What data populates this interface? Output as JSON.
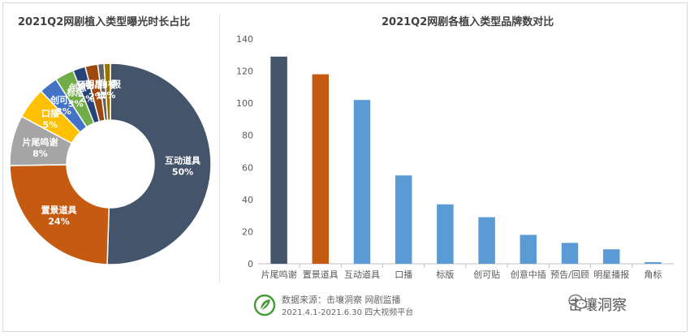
{
  "footer": {
    "source": "数据来源：击壤洞察 网剧监播",
    "period": "2021.4.1-2021.6.30 四大视频平台",
    "watermark": "击壤洞察",
    "logo_icon": "jirang-leaf-logo-icon",
    "wechat_icon": "wechat-icon"
  },
  "chart_data": [
    {
      "type": "pie",
      "title": "2021Q2网剧植入类型曝光时长占比",
      "donut": true,
      "slices": [
        {
          "label": "互动道具",
          "value": 50,
          "pct_label": "50%",
          "color": "#44546a"
        },
        {
          "label": "置景道具",
          "value": 24,
          "pct_label": "24%",
          "color": "#c55a11"
        },
        {
          "label": "片尾鸣谢",
          "value": 8,
          "pct_label": "8%",
          "color": "#a5a5a5"
        },
        {
          "label": "口播",
          "value": 5,
          "pct_label": "5%",
          "color": "#ffc000"
        },
        {
          "label": "创可贴",
          "value": 3,
          "pct_label": "3%",
          "color": "#4472c4"
        },
        {
          "label": "标版",
          "value": 3,
          "pct_label": "3%",
          "color": "#70ad47"
        },
        {
          "label": "创意中插",
          "value": 2,
          "pct_label": "2%",
          "color": "#264478"
        },
        {
          "label": "预告/回顾",
          "value": 2,
          "pct_label": "2%",
          "color": "#9e480e"
        },
        {
          "label": "明星播报",
          "value": 1,
          "pct_label": "1%",
          "color": "#636363"
        },
        {
          "label": "角标",
          "value": 1,
          "pct_label": "1%",
          "color": "#997300"
        }
      ]
    },
    {
      "type": "bar",
      "title": "2021Q2网剧各植入类型品牌数对比",
      "categories": [
        "片尾鸣谢",
        "置景道具",
        "互动道具",
        "口播",
        "标版",
        "创可贴",
        "创意中插",
        "预告/回顾",
        "明星播报",
        "角标"
      ],
      "values": [
        129,
        118,
        102,
        55,
        37,
        29,
        18,
        13,
        9,
        1
      ],
      "colors": [
        "#44546a",
        "#c55a11",
        "#5b9bd5",
        "#5b9bd5",
        "#5b9bd5",
        "#5b9bd5",
        "#5b9bd5",
        "#5b9bd5",
        "#5b9bd5",
        "#5b9bd5"
      ],
      "ylim": [
        0,
        140
      ],
      "yticks": [
        0,
        20,
        40,
        60,
        80,
        100,
        120,
        140
      ],
      "grid": false
    }
  ]
}
